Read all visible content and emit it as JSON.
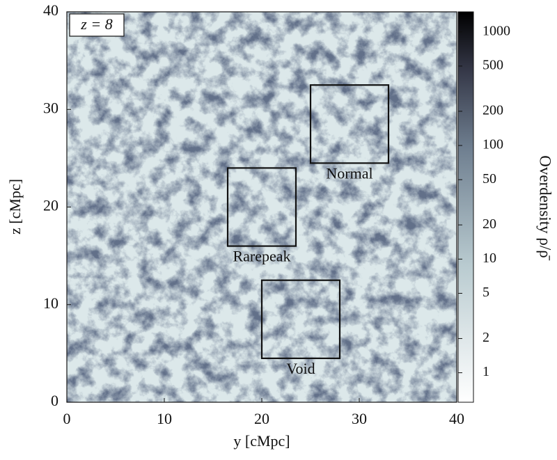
{
  "chart_data": {
    "type": "density-map",
    "annotation": "z = 8",
    "xlabel": "y [cMpc]",
    "ylabel": "z [cMpc]",
    "xlim": [
      0,
      40
    ],
    "ylim": [
      0,
      40
    ],
    "xticks": [
      0,
      10,
      20,
      30,
      40
    ],
    "yticks": [
      0,
      10,
      20,
      30,
      40
    ],
    "regions": [
      {
        "name": "Normal",
        "x": [
          25,
          33
        ],
        "y": [
          24.5,
          32.5
        ]
      },
      {
        "name": "Rarepeak",
        "x": [
          16.5,
          23.5
        ],
        "y": [
          16,
          24
        ]
      },
      {
        "name": "Void",
        "x": [
          20,
          28
        ],
        "y": [
          4.5,
          12.5
        ]
      }
    ],
    "colorbar": {
      "label": "Overdensity ρ/ρ̄",
      "scale": "log",
      "lim": [
        0.55,
        1500
      ],
      "ticks": [
        1,
        2,
        5,
        10,
        20,
        50,
        100,
        200,
        500,
        1000
      ]
    }
  }
}
